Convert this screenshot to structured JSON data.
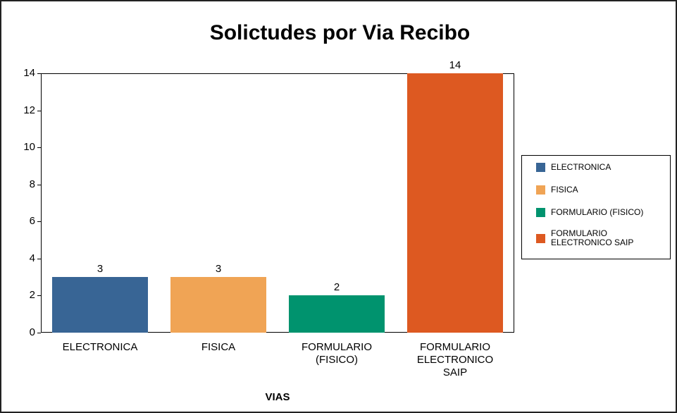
{
  "chart_data": {
    "type": "bar",
    "title": "Solictudes por Via Recibo",
    "x_label": "VIAS",
    "categories": [
      "ELECTRONICA",
      "FISICA",
      "FORMULARIO (FISICO)",
      "FORMULARIO ELECTRONICO SAIP"
    ],
    "values": [
      3,
      3,
      2,
      14
    ],
    "colors": [
      "#386595",
      "#f0a455",
      "#00936e",
      "#dd5921"
    ],
    "ylim": [
      0,
      14
    ],
    "yticks": [
      0,
      2,
      4,
      6,
      8,
      10,
      12,
      14
    ],
    "grid": false,
    "legend": "right"
  }
}
